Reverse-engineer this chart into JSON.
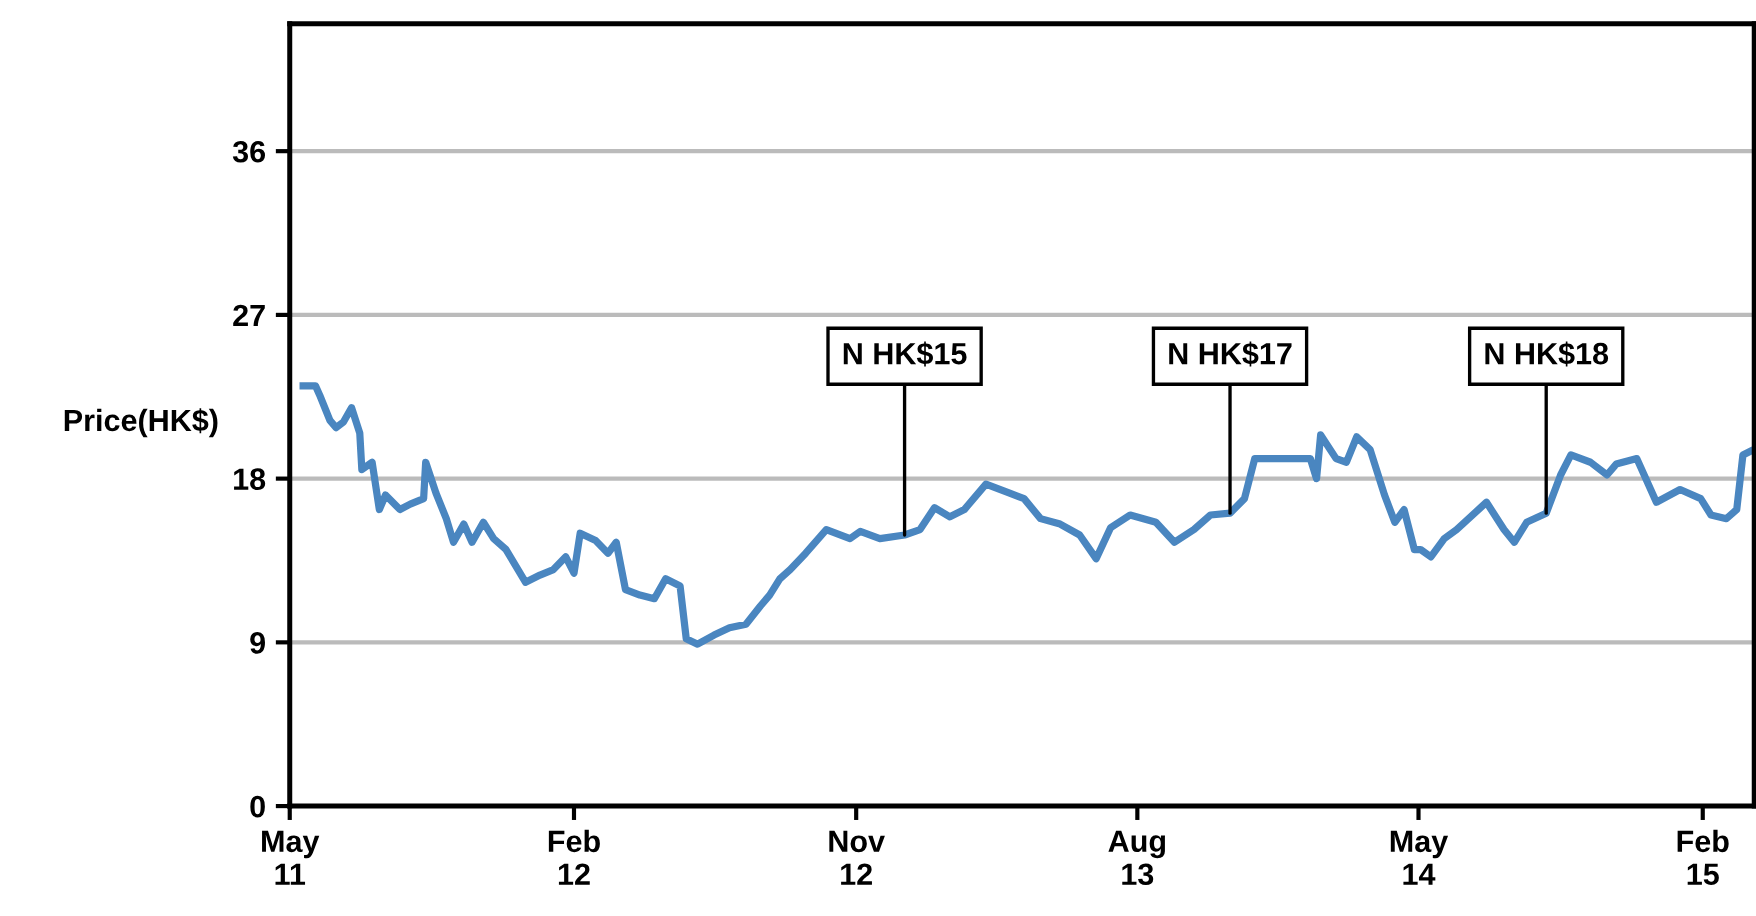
{
  "chart_data": {
    "type": "line",
    "ylabel": "Price(HK$)",
    "x": [
      "2011-05-14",
      "2011-05-26",
      "2011-05-30",
      "2011-06-09",
      "2011-06-15",
      "2011-06-22",
      "2011-06-30",
      "2011-07-08",
      "2011-07-10",
      "2011-07-20",
      "2011-07-27",
      "2011-08-02",
      "2011-08-16",
      "2011-08-26",
      "2011-09-08",
      "2011-09-10",
      "2011-09-20",
      "2011-09-30",
      "2011-10-07",
      "2011-10-17",
      "2011-10-25",
      "2011-11-05",
      "2011-11-15",
      "2011-11-27",
      "2011-12-16",
      "2011-12-30",
      "2012-01-12",
      "2012-01-24",
      "2012-02-01",
      "2012-02-07",
      "2012-02-22",
      "2012-03-05",
      "2012-03-13",
      "2012-03-22",
      "2012-04-05",
      "2012-04-19",
      "2012-04-30",
      "2012-05-14",
      "2012-05-20",
      "2012-05-31",
      "2012-06-16",
      "2012-07-01",
      "2012-07-17",
      "2012-07-31",
      "2012-08-09",
      "2012-08-19",
      "2012-08-29",
      "2012-09-13",
      "2012-10-03",
      "2012-10-26",
      "2012-11-05",
      "2012-11-24",
      "2012-12-18",
      "2013-01-02",
      "2013-01-16",
      "2013-01-31",
      "2013-02-14",
      "2013-03-07",
      "2013-03-30",
      "2013-04-13",
      "2013-04-29",
      "2013-05-18",
      "2013-06-06",
      "2013-06-22",
      "2013-07-06",
      "2013-07-25",
      "2013-08-19",
      "2013-09-06",
      "2013-09-25",
      "2013-10-11",
      "2013-10-30",
      "2013-11-13",
      "2013-11-23",
      "2013-12-18",
      "2014-01-16",
      "2014-01-22",
      "2014-01-26",
      "2014-02-10",
      "2014-02-20",
      "2014-03-02",
      "2014-03-15",
      "2014-03-29",
      "2014-04-08",
      "2014-04-17",
      "2014-04-27",
      "2014-05-03",
      "2014-05-13",
      "2014-05-26",
      "2014-06-07",
      "2014-07-06",
      "2014-07-23",
      "2014-08-02",
      "2014-08-14",
      "2014-09-02",
      "2014-09-16",
      "2014-09-26",
      "2014-10-15",
      "2014-10-31",
      "2014-11-09",
      "2014-11-29",
      "2014-12-18",
      "2015-01-10",
      "2015-01-30",
      "2015-02-09",
      "2015-02-24",
      "2015-03-06",
      "2015-03-12",
      "2015-03-19"
    ],
    "series": [
      {
        "color": "#4a86c0",
        "values": [
          23.1,
          23.1,
          22.6,
          21.2,
          20.8,
          21.1,
          21.9,
          20.5,
          18.5,
          18.9,
          16.3,
          17.1,
          16.3,
          16.6,
          16.9,
          18.9,
          17.2,
          15.8,
          14.5,
          15.5,
          14.5,
          15.6,
          14.7,
          14.1,
          12.3,
          12.7,
          13.0,
          13.7,
          12.8,
          15.0,
          14.6,
          13.9,
          14.5,
          11.9,
          11.6,
          11.4,
          12.5,
          12.1,
          9.2,
          8.9,
          9.4,
          9.8,
          10.0,
          11.0,
          11.6,
          12.5,
          13.0,
          13.9,
          15.2,
          14.7,
          15.1,
          14.7,
          14.9,
          15.2,
          16.4,
          15.9,
          16.3,
          17.7,
          17.2,
          16.9,
          15.8,
          15.5,
          14.9,
          13.6,
          15.3,
          16.0,
          15.6,
          14.5,
          15.2,
          16.0,
          16.1,
          16.9,
          19.1,
          19.1,
          19.1,
          18.0,
          20.4,
          19.1,
          18.9,
          20.3,
          19.6,
          17.1,
          15.6,
          16.3,
          14.1,
          14.1,
          13.7,
          14.7,
          15.2,
          16.7,
          15.2,
          14.5,
          15.6,
          16.1,
          18.2,
          19.3,
          18.9,
          18.2,
          18.8,
          19.1,
          16.7,
          17.4,
          16.9,
          16.0,
          15.8,
          16.3,
          19.3,
          19.5
        ]
      }
    ],
    "xlim": [
      "2011-05-01",
      "2015-03-23"
    ],
    "xticks": [
      {
        "value": "2011-05-01",
        "label": "May\n11"
      },
      {
        "value": "2012-02-01",
        "label": "Feb\n12"
      },
      {
        "value": "2012-11-01",
        "label": "Nov\n12"
      },
      {
        "value": "2013-08-01",
        "label": "Aug\n13"
      },
      {
        "value": "2014-05-01",
        "label": "May\n14"
      },
      {
        "value": "2015-02-01",
        "label": "Feb\n15"
      }
    ],
    "ylim": [
      0,
      43
    ],
    "yticks": [
      0,
      9,
      18,
      27,
      36
    ],
    "grid": "y",
    "legend": false,
    "line_style": "solid",
    "marker": "none",
    "annotations": [
      {
        "text": "N HK$15",
        "x": "2012-12-18",
        "y": 14.9
      },
      {
        "text": "N HK$17",
        "x": "2013-10-30",
        "y": 16.1
      },
      {
        "text": "N HK$18",
        "x": "2014-09-02",
        "y": 16.1
      }
    ]
  }
}
